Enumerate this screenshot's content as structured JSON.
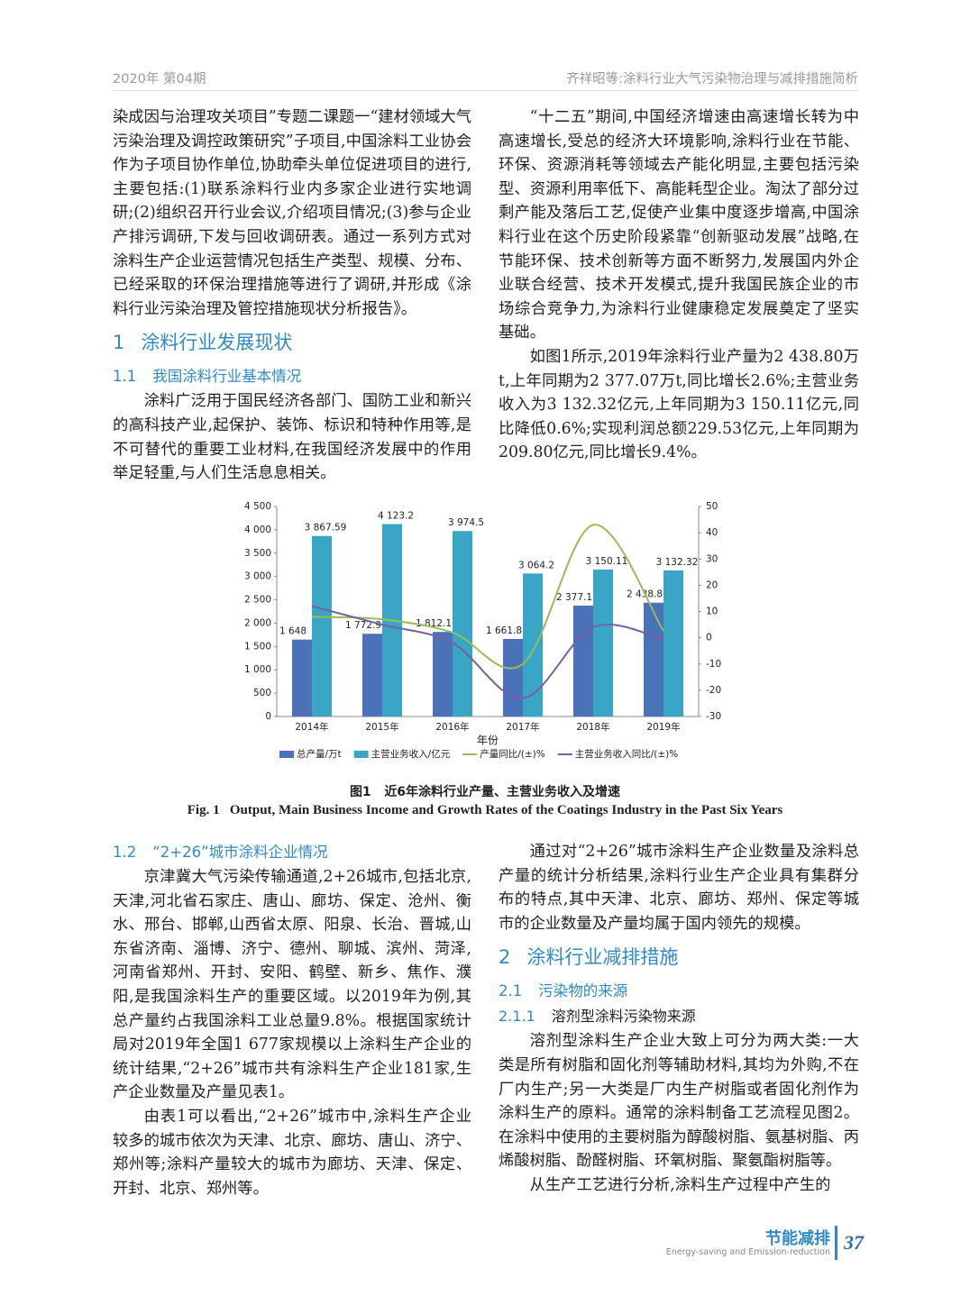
{
  "header": {
    "issue": "2020年 第04期",
    "running_title": "齐祥昭等:涂料行业大气污染物治理与减排措施简析"
  },
  "columns": [
    [
      {
        "type": "continued",
        "text": "染成因与治理攻关项目”专题二课题一“建材领域大气污染治理及调控政策研究”子项目,中国涂料工业协会作为子项目协作单位,协助牵头单位促进项目的进行,主要包括:(1)联系涂料行业内多家企业进行实地调研;(2)组织召开行业会议,介绍项目情况;(3)参与企业产排污调研,下发与回收调研表。通过一系列方式对涂料生产企业运营情况包括生产类型、规模、分布、已经采取的环保治理措施等进行了调研,并形成《涂料行业污染治理及管控措施现状分析报告》。"
      },
      {
        "type": "h1",
        "number": "1",
        "title": "涂料行业发展现状"
      },
      {
        "type": "h2",
        "number": "1.1",
        "title": "我国涂料行业基本情况"
      },
      {
        "type": "p",
        "text": "涂料广泛用于国民经济各部门、国防工业和新兴的高科技产业,起保护、装饰、标识和特种作用等,是不可替代的重要工业材料,在我国经济发展中的作用举足轻重,与人们生活息息相关。"
      }
    ],
    [
      {
        "type": "p",
        "text": "“十二五”期间,中国经济增速由高速增长转为中高速增长,受总的经济大环境影响,涂料行业在节能、环保、资源消耗等领域去产能化明显,主要包括污染型、资源利用率低下、高能耗型企业。淘汰了部分过剩产能及落后工艺,促使产业集中度逐步增高,中国涂料行业在这个历史阶段紧靠“创新驱动发展”战略,在节能环保、技术创新等方面不断努力,发展国内外企业联合经营、技术开发模式,提升我国民族企业的市场综合竞争力,为涂料行业健康稳定发展奠定了坚实基础。"
      },
      {
        "type": "p",
        "text": "如图1所示,2019年涂料行业产量为2 438.80万t,上年同期为2 377.07万t,同比增长2.6%;主营业务收入为3 132.32亿元,上年同期为3 150.11亿元,同比降低0.6%;实现利润总额229.53亿元,上年同期为209.80亿元,同比增长9.4%。"
      }
    ],
    [
      {
        "type": "h2",
        "number": "1.2",
        "title": "“2+26”城市涂料企业情况"
      },
      {
        "type": "p",
        "text": "京津冀大气污染传输通道,2+26城市,包括北京,天津,河北省石家庄、唐山、廊坊、保定、沧州、衡水、邢台、邯郸,山西省太原、阳泉、长治、晋城,山东省济南、淄博、济宁、德州、聊城、滨州、菏泽,河南省郑州、开封、安阳、鹤壁、新乡、焦作、濮阳,是我国涂料生产的重要区域。以2019年为例,其总产量约占我国涂料工业总量9.8%。根据国家统计局对2019年全国1 677家规模以上涂料生产企业的统计结果,“2+26”城市共有涂料生产企业181家,生产企业数量及产量见表1。"
      },
      {
        "type": "p",
        "text": "由表1可以看出,“2+26”城市中,涂料生产企业较多的城市依次为天津、北京、廊坊、唐山、济宁、郑州等;涂料产量较大的城市为廊坊、天津、保定、开封、北京、郑州等。"
      }
    ],
    [
      {
        "type": "p",
        "text": "通过对“2+26”城市涂料生产企业数量及涂料总产量的统计分析结果,涂料行业生产企业具有集群分布的特点,其中天津、北京、廊坊、郑州、保定等城市的企业数量及产量均属于国内领先的规模。"
      },
      {
        "type": "h1",
        "number": "2",
        "title": "涂料行业减排措施"
      },
      {
        "type": "h2",
        "number": "2.1",
        "title": "污染物的来源"
      },
      {
        "type": "h3",
        "number": "2.1.1",
        "title": "溶剂型涂料污染物来源"
      },
      {
        "type": "p",
        "text": "溶剂型涂料生产企业大致上可分为两大类:一大类是所有树脂和固化剂等辅助材料,其均为外购,不在厂内生产;另一大类是厂内生产树脂或者固化剂作为涂料生产的原料。通常的涂料制备工艺流程见图2。在涂料中使用的主要树脂为醇酸树脂、氨基树脂、丙烯酸树脂、酚醛树脂、环氧树脂、聚氨酯树脂等。"
      },
      {
        "type": "p",
        "text": "从生产工艺进行分析,涂料生产过程中产生的"
      }
    ]
  ],
  "chart_data": {
    "type": "bar",
    "x_label": "年份",
    "categories": [
      "2014年",
      "2015年",
      "2016年",
      "2017年",
      "2018年",
      "2019年"
    ],
    "series": [
      {
        "name": "总产量/万t",
        "type": "bar",
        "color": "#4a72b8",
        "values": [
          1648,
          1772.9,
          1812.1,
          1661.8,
          2377.1,
          2438.8
        ],
        "value_labels": [
          "1 648",
          "1 772.9",
          "1 812.1",
          "1 661.8",
          "2 377.1",
          "2 438.8"
        ]
      },
      {
        "name": "主营业务收入/亿元",
        "type": "bar",
        "color": "#3aa6c6",
        "values": [
          3867.59,
          4123.2,
          3974.5,
          3064.2,
          3150.11,
          3132.32
        ],
        "value_labels": [
          "3 867.59",
          "4 123.2",
          "3 974.5",
          "3 064.2",
          "3 150.11",
          "3 132.32"
        ]
      },
      {
        "name": "产量同比/(±)%",
        "type": "line",
        "axis": "y2",
        "color": "#9bbb59",
        "values": [
          8,
          7,
          2,
          -10,
          43,
          2.6
        ]
      },
      {
        "name": "主营业务收入同比/(±)%",
        "type": "line",
        "axis": "y2",
        "color": "#7a5fa0",
        "values": [
          12,
          5,
          -2,
          -23,
          4,
          -0.6
        ]
      }
    ],
    "ylim": [
      0,
      4500
    ],
    "yticks": [
      0,
      500,
      {
        "value": 1000,
        "label": "1 000"
      },
      {
        "value": 1500,
        "label": "1 500"
      },
      {
        "value": 2000,
        "label": "2 000"
      },
      {
        "value": 2500,
        "label": "2 500"
      },
      {
        "value": 3000,
        "label": "3 000"
      },
      {
        "value": 3500,
        "label": "3 500"
      },
      {
        "value": 4000,
        "label": "4 000"
      },
      {
        "value": 4500,
        "label": "4 500"
      }
    ],
    "y2lim": [
      -30,
      50
    ],
    "y2ticks": [
      -30,
      -20,
      -10,
      0,
      10,
      20,
      30,
      40,
      50
    ],
    "grid": false,
    "legend": "bottom"
  },
  "captions": {
    "zh_label": "图1",
    "zh": "近6年涂料行业产量、主营业务收入及增速",
    "en_label": "Fig. 1",
    "en": "Output, Main Business Income and Growth Rates of the Coatings Industry in the Past Six Years"
  },
  "footer": {
    "journal": "节能减排",
    "journal_en": "Energy-saving and Emission-reduction",
    "page": "37"
  }
}
